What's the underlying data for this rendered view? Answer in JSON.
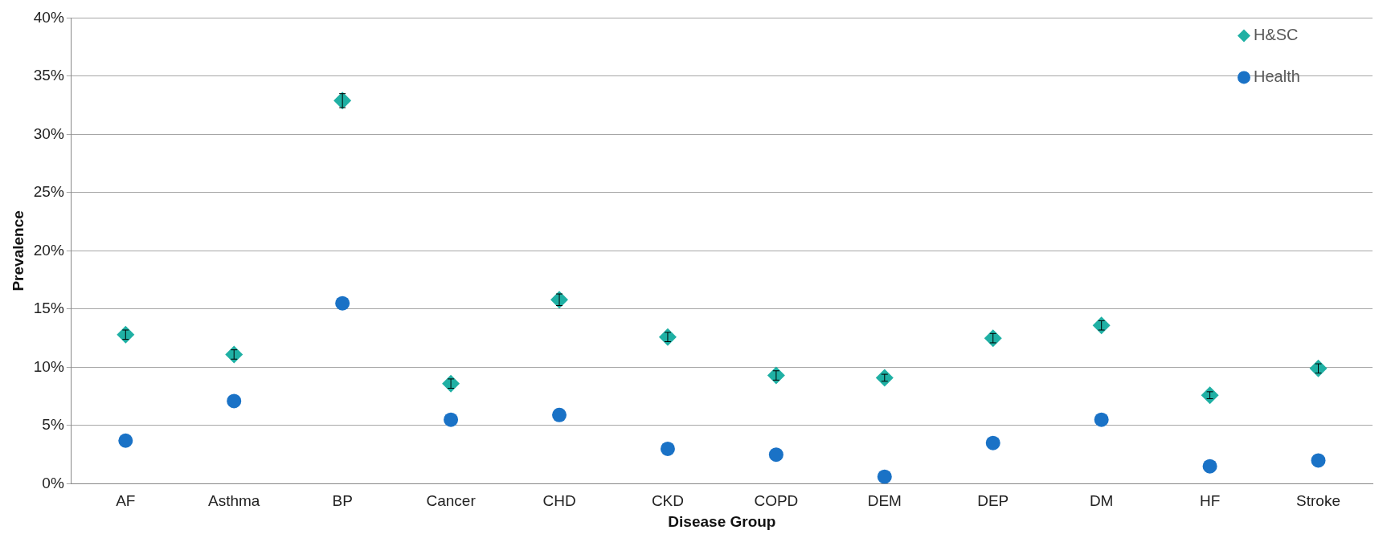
{
  "chart_data": {
    "type": "scatter",
    "xlabel": "Disease Group",
    "ylabel": "Prevalence",
    "categories": [
      "AF",
      "Asthma",
      "BP",
      "Cancer",
      "CHD",
      "CKD",
      "COPD",
      "DEM",
      "DEP",
      "DM",
      "HF",
      "Stroke"
    ],
    "series": [
      {
        "name": "H&SC",
        "color": "#1fb0a4",
        "marker": "diamond",
        "values": [
          12.8,
          11.1,
          32.9,
          8.6,
          15.8,
          12.6,
          9.3,
          9.1,
          12.5,
          13.6,
          7.6,
          9.9
        ],
        "errors": [
          0.4,
          0.4,
          0.6,
          0.4,
          0.5,
          0.4,
          0.4,
          0.3,
          0.4,
          0.4,
          0.3,
          0.4
        ]
      },
      {
        "name": "Health",
        "color": "#1a72c6",
        "marker": "circle",
        "values": [
          3.7,
          7.1,
          15.5,
          5.5,
          5.9,
          3.0,
          2.5,
          0.6,
          3.5,
          5.5,
          1.5,
          2.0
        ]
      }
    ],
    "ylim": [
      0,
      40
    ],
    "yticks": [
      {
        "value": 0,
        "label": "0%"
      },
      {
        "value": 5,
        "label": "5%"
      },
      {
        "value": 10,
        "label": "10%"
      },
      {
        "value": 15,
        "label": "15%"
      },
      {
        "value": 20,
        "label": "20%"
      },
      {
        "value": 25,
        "label": "25%"
      },
      {
        "value": 30,
        "label": "30%"
      },
      {
        "value": 35,
        "label": "35%"
      },
      {
        "value": 40,
        "label": "40%"
      }
    ],
    "grid": "y",
    "legend": "top right"
  }
}
